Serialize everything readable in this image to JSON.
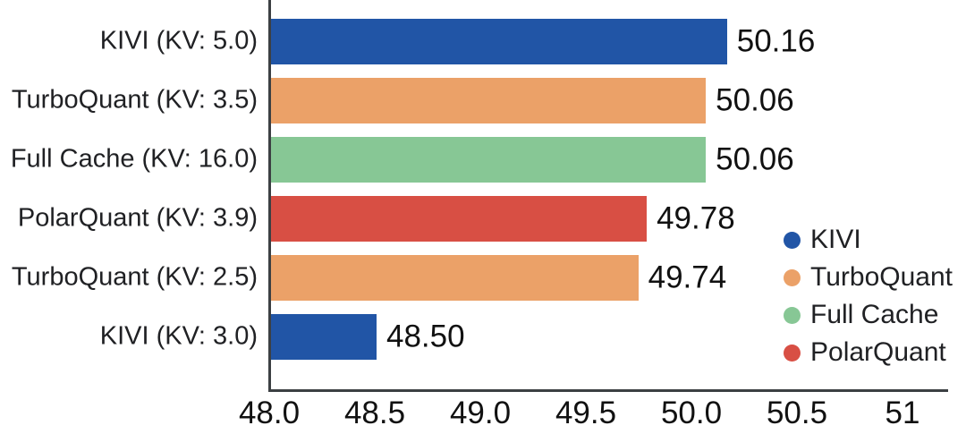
{
  "chart_data": {
    "type": "bar",
    "orientation": "horizontal",
    "title": "",
    "xlabel": "",
    "ylabel": "",
    "grid": false,
    "xlim": [
      48.0,
      51.22
    ],
    "categories": [
      "KIVI (KV: 5.0)",
      "TurboQuant (KV: 3.5)",
      "Full Cache (KV: 16.0)",
      "PolarQuant (KV: 3.9)",
      "TurboQuant (KV: 2.5)",
      "KIVI (KV: 3.0)"
    ],
    "values": [
      50.16,
      50.06,
      50.06,
      49.78,
      49.74,
      48.5
    ],
    "value_labels": [
      "50.16",
      "50.06",
      "50.06",
      "49.78",
      "49.74",
      "48.50"
    ],
    "bar_series": [
      "KIVI",
      "TurboQuant",
      "Full Cache",
      "PolarQuant",
      "TurboQuant",
      "KIVI"
    ],
    "x_ticks": [
      48.0,
      48.5,
      49.0,
      49.5,
      50.0,
      50.5,
      51.0
    ],
    "x_tick_labels": [
      "48.0",
      "48.5",
      "49.0",
      "49.5",
      "50.0",
      "50.5",
      "51"
    ],
    "legend": {
      "position": "right-middle",
      "entries": [
        {
          "label": "KIVI",
          "color": "#2155A6"
        },
        {
          "label": "TurboQuant",
          "color": "#EBA168"
        },
        {
          "label": "Full Cache",
          "color": "#87C795"
        },
        {
          "label": "PolarQuant",
          "color": "#D84F44"
        }
      ]
    },
    "colors": {
      "KIVI": "#2155A6",
      "TurboQuant": "#EBA168",
      "Full Cache": "#87C795",
      "PolarQuant": "#D84F44",
      "axis": "#3C4043",
      "text": "#202124"
    }
  }
}
